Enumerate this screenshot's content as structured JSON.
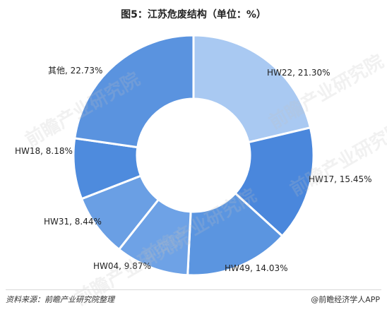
{
  "chart_data": {
    "type": "pie",
    "title": "图5：江苏危废结构（单位：%）",
    "slices": [
      {
        "label": "HW22, 21.30%",
        "name": "HW22",
        "value": 21.3,
        "color": "#a9c9f2"
      },
      {
        "label": "HW17, 15.45%",
        "name": "HW17",
        "value": 15.45,
        "color": "#4a87dc"
      },
      {
        "label": "HW49, 14.03%",
        "name": "HW49",
        "value": 14.03,
        "color": "#5b95e0"
      },
      {
        "label": "HW04, 9.87%",
        "name": "HW04",
        "value": 9.87,
        "color": "#6ea2e6"
      },
      {
        "label": "HW31, 8.44%",
        "name": "HW31",
        "value": 8.44,
        "color": "#6a9fe4"
      },
      {
        "label": "HW18, 8.18%",
        "name": "HW18",
        "value": 8.18,
        "color": "#4e8bdd"
      },
      {
        "label": "其他, 22.73%",
        "name": "其他",
        "value": 22.73,
        "color": "#5a93df"
      }
    ]
  },
  "watermark_text": "前瞻产业研究院",
  "footer": {
    "source": "资料来源：前瞻产业研究院整理",
    "brand": "@前瞻经济学人APP"
  }
}
